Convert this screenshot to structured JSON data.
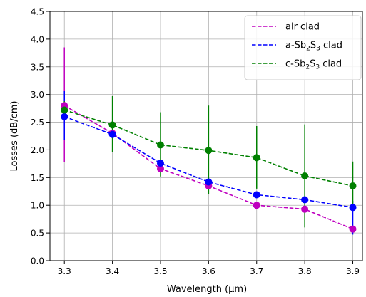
{
  "chart_data": {
    "type": "line",
    "title": "",
    "xlabel": "Wavelength (µm)",
    "ylabel": "Losses (dB/cm)",
    "x": [
      3.3,
      3.4,
      3.5,
      3.6,
      3.7,
      3.8,
      3.9
    ],
    "xlim": [
      3.27,
      3.92
    ],
    "ylim": [
      0.0,
      4.5
    ],
    "x_ticks": [
      "3.3",
      "3.4",
      "3.5",
      "3.6",
      "3.7",
      "3.8",
      "3.9"
    ],
    "y_ticks": [
      "0.0",
      "0.5",
      "1.0",
      "1.5",
      "2.0",
      "2.5",
      "3.0",
      "3.5",
      "4.0",
      "4.5"
    ],
    "grid": true,
    "legend_position": "top-right",
    "series": [
      {
        "name": "air clad",
        "legend": {
          "pre": "air clad",
          "sub1": "",
          "mid": "",
          "sub2": "",
          "post": ""
        },
        "color": "#bf00bf",
        "line_style": "dashed",
        "values": [
          2.8,
          2.3,
          1.66,
          1.35,
          1.0,
          0.93,
          0.57
        ],
        "error": [
          [
            1.78,
            3.85
          ],
          null,
          null,
          null,
          null,
          null,
          null
        ]
      },
      {
        "name": "a-Sb2S3 clad",
        "legend": {
          "pre": "a-Sb",
          "sub1": "2",
          "mid": "S",
          "sub2": "3",
          "post": " clad"
        },
        "color": "#0000ff",
        "line_style": "dashed",
        "values": [
          2.6,
          2.28,
          1.76,
          1.42,
          1.19,
          1.1,
          0.96
        ],
        "error": [
          [
            2.18,
            3.06
          ],
          null,
          null,
          null,
          null,
          null,
          [
            0.47,
            1.08
          ]
        ]
      },
      {
        "name": "c-Sb2S3 clad",
        "legend": {
          "pre": "c-Sb",
          "sub1": "2",
          "mid": "S",
          "sub2": "3",
          "post": " clad"
        },
        "color": "#008000",
        "line_style": "dashed",
        "values": [
          2.72,
          2.45,
          2.09,
          1.99,
          1.86,
          1.53,
          1.35
        ],
        "error": [
          [
            2.58,
            2.88
          ],
          [
            1.96,
            2.97
          ],
          [
            1.52,
            2.68
          ],
          [
            1.2,
            2.8
          ],
          [
            1.3,
            2.43
          ],
          [
            0.6,
            2.46
          ],
          [
            0.92,
            1.79
          ]
        ]
      }
    ]
  }
}
